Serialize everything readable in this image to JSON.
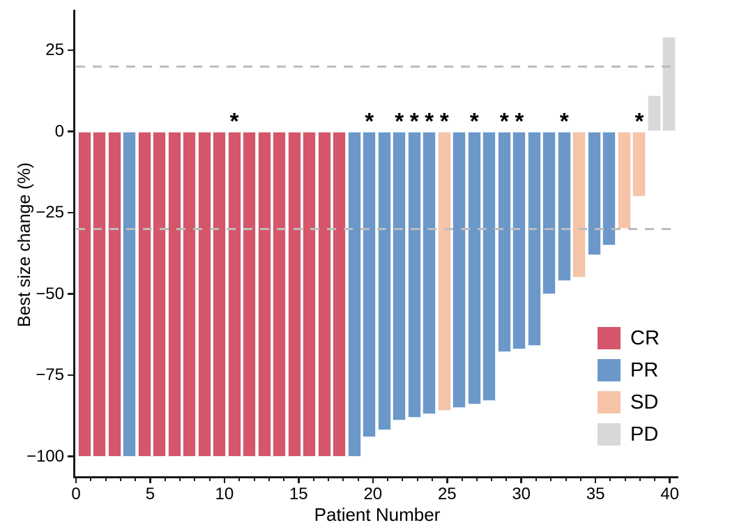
{
  "colors": {
    "CR": "#d5566a",
    "PR": "#6b98c9",
    "SD": "#f7c4a8",
    "PD": "#d8d8d8",
    "reference_line": "#bdbdbd",
    "axis": "#1a1a1a",
    "star": "#000000"
  },
  "annotations": {
    "significance_marker": "*"
  },
  "chart_data": {
    "type": "bar",
    "subtype": "waterfall-best-response",
    "title": "",
    "xlabel": "Patient Number",
    "ylabel": "Best size change (%)",
    "xlim": [
      0,
      42
    ],
    "ylim": [
      -107,
      37
    ],
    "grid": false,
    "x_axis": {
      "title": "Patient Number",
      "ticks": [
        {
          "label": "0",
          "value": 0
        },
        {
          "label": "5",
          "value": 5
        },
        {
          "label": "10",
          "value": 10
        },
        {
          "label": "15",
          "value": 15
        },
        {
          "label": "20",
          "value": 20
        },
        {
          "label": "25",
          "value": 25
        },
        {
          "label": "30",
          "value": 30
        },
        {
          "label": "35",
          "value": 35
        },
        {
          "label": "40",
          "value": 40
        }
      ],
      "minor_ticks_every": 1
    },
    "y_axis": {
      "title": "Best size change (%)",
      "ticks": [
        {
          "label": "25",
          "value": 25
        },
        {
          "label": "0",
          "value": 0
        },
        {
          "label": "−25",
          "value": -25
        },
        {
          "label": "−50",
          "value": -50
        },
        {
          "label": "−75",
          "value": -75
        },
        {
          "label": "−100",
          "value": -100
        }
      ]
    },
    "reference_lines": [
      {
        "value": 20,
        "style": "dashed"
      },
      {
        "value": -30,
        "style": "dashed"
      }
    ],
    "legend": {
      "position": "inside-right",
      "entries": [
        {
          "label": "CR",
          "response": "CR"
        },
        {
          "label": "PR",
          "response": "PR"
        },
        {
          "label": "SD",
          "response": "SD"
        },
        {
          "label": "PD",
          "response": "PD"
        }
      ]
    },
    "patients": [
      {
        "patient": 1,
        "value": -100,
        "response": "CR",
        "star": false
      },
      {
        "patient": 2,
        "value": -100,
        "response": "CR",
        "star": false
      },
      {
        "patient": 3,
        "value": -100,
        "response": "CR",
        "star": false
      },
      {
        "patient": 4,
        "value": -100,
        "response": "PR",
        "star": false
      },
      {
        "patient": 5,
        "value": -100,
        "response": "CR",
        "star": false
      },
      {
        "patient": 6,
        "value": -100,
        "response": "CR",
        "star": false
      },
      {
        "patient": 7,
        "value": -100,
        "response": "CR",
        "star": false
      },
      {
        "patient": 8,
        "value": -100,
        "response": "CR",
        "star": false
      },
      {
        "patient": 9,
        "value": -100,
        "response": "CR",
        "star": false
      },
      {
        "patient": 10,
        "value": -100,
        "response": "CR",
        "star": false
      },
      {
        "patient": 11,
        "value": -100,
        "response": "CR",
        "star": true
      },
      {
        "patient": 12,
        "value": -100,
        "response": "CR",
        "star": false
      },
      {
        "patient": 13,
        "value": -100,
        "response": "CR",
        "star": false
      },
      {
        "patient": 14,
        "value": -100,
        "response": "CR",
        "star": false
      },
      {
        "patient": 15,
        "value": -100,
        "response": "CR",
        "star": false
      },
      {
        "patient": 16,
        "value": -100,
        "response": "CR",
        "star": false
      },
      {
        "patient": 17,
        "value": -100,
        "response": "CR",
        "star": false
      },
      {
        "patient": 18,
        "value": -100,
        "response": "CR",
        "star": false
      },
      {
        "patient": 19,
        "value": -100,
        "response": "PR",
        "star": false
      },
      {
        "patient": 20,
        "value": -94,
        "response": "PR",
        "star": true
      },
      {
        "patient": 21,
        "value": -92,
        "response": "PR",
        "star": false
      },
      {
        "patient": 22,
        "value": -89,
        "response": "PR",
        "star": true
      },
      {
        "patient": 23,
        "value": -88,
        "response": "PR",
        "star": true
      },
      {
        "patient": 24,
        "value": -87,
        "response": "PR",
        "star": true
      },
      {
        "patient": 25,
        "value": -86,
        "response": "SD",
        "star": true
      },
      {
        "patient": 26,
        "value": -85,
        "response": "PR",
        "star": false
      },
      {
        "patient": 27,
        "value": -84,
        "response": "PR",
        "star": true
      },
      {
        "patient": 28,
        "value": -83,
        "response": "PR",
        "star": false
      },
      {
        "patient": 29,
        "value": -68,
        "response": "PR",
        "star": true
      },
      {
        "patient": 30,
        "value": -67,
        "response": "PR",
        "star": true
      },
      {
        "patient": 31,
        "value": -66,
        "response": "PR",
        "star": false
      },
      {
        "patient": 32,
        "value": -50,
        "response": "PR",
        "star": false
      },
      {
        "patient": 33,
        "value": -46,
        "response": "PR",
        "star": true
      },
      {
        "patient": 34,
        "value": -45,
        "response": "SD",
        "star": false
      },
      {
        "patient": 35,
        "value": -38,
        "response": "PR",
        "star": false
      },
      {
        "patient": 36,
        "value": -35,
        "response": "PR",
        "star": false
      },
      {
        "patient": 37,
        "value": -30,
        "response": "SD",
        "star": false
      },
      {
        "patient": 38,
        "value": -20,
        "response": "SD",
        "star": true
      },
      {
        "patient": 39,
        "value": 11,
        "response": "PD",
        "star": false
      },
      {
        "patient": 40,
        "value": 29,
        "response": "PD",
        "star": false
      }
    ]
  }
}
